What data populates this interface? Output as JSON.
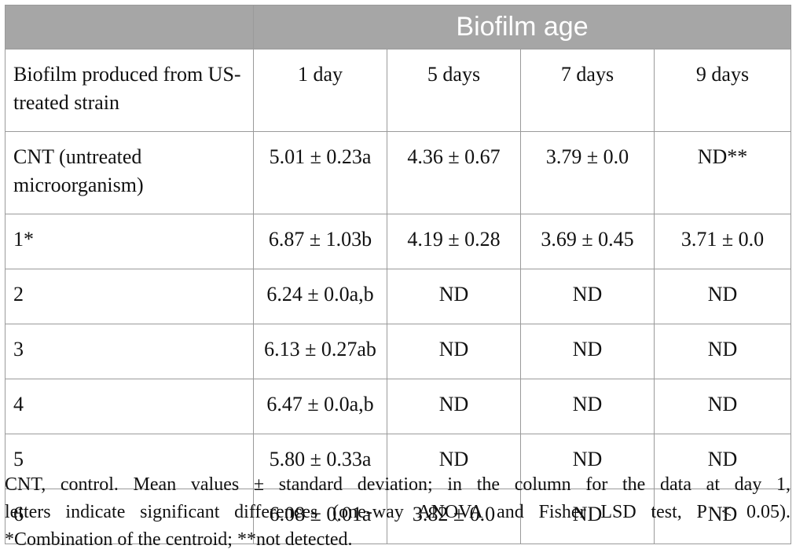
{
  "table": {
    "group_header": "Biofilm age",
    "row_header": "Biofilm produced from US-treated strain",
    "columns": [
      "1 day",
      "5 days",
      "7 days",
      "9 days"
    ],
    "rows": [
      {
        "label": "CNT (untreated microorganism)",
        "cells": [
          "5.01 ± 0.23a",
          "4.36 ± 0.67",
          "3.79 ± 0.0",
          "ND**"
        ]
      },
      {
        "label": "1*",
        "cells": [
          "6.87 ± 1.03b",
          "4.19 ± 0.28",
          "3.69 ± 0.45",
          "3.71 ± 0.0"
        ]
      },
      {
        "label": "2",
        "cells": [
          "6.24 ± 0.0a,b",
          "ND",
          "ND",
          "ND"
        ]
      },
      {
        "label": "3",
        "cells": [
          "6.13 ± 0.27ab",
          "ND",
          "ND",
          "ND"
        ]
      },
      {
        "label": "4",
        "cells": [
          "6.47 ± 0.0a,b",
          "ND",
          "ND",
          "ND"
        ]
      },
      {
        "label": "5",
        "cells": [
          "5.80 ± 0.33a",
          "ND",
          "ND",
          "ND"
        ]
      },
      {
        "label": "6",
        "cells": [
          "6.08 ± 0.01a",
          "3.82 ± 0.0",
          "ND",
          "ND"
        ]
      }
    ]
  },
  "footnote": {
    "line1": "CNT, control. Mean values ± standard deviation; in the column for the data at day 1,",
    "line2": "letters indicate significant differences (one-way ANOVA and Fisher LSD test, P < 0.05).",
    "line3": "*Combination of the centroid; **not detected."
  }
}
